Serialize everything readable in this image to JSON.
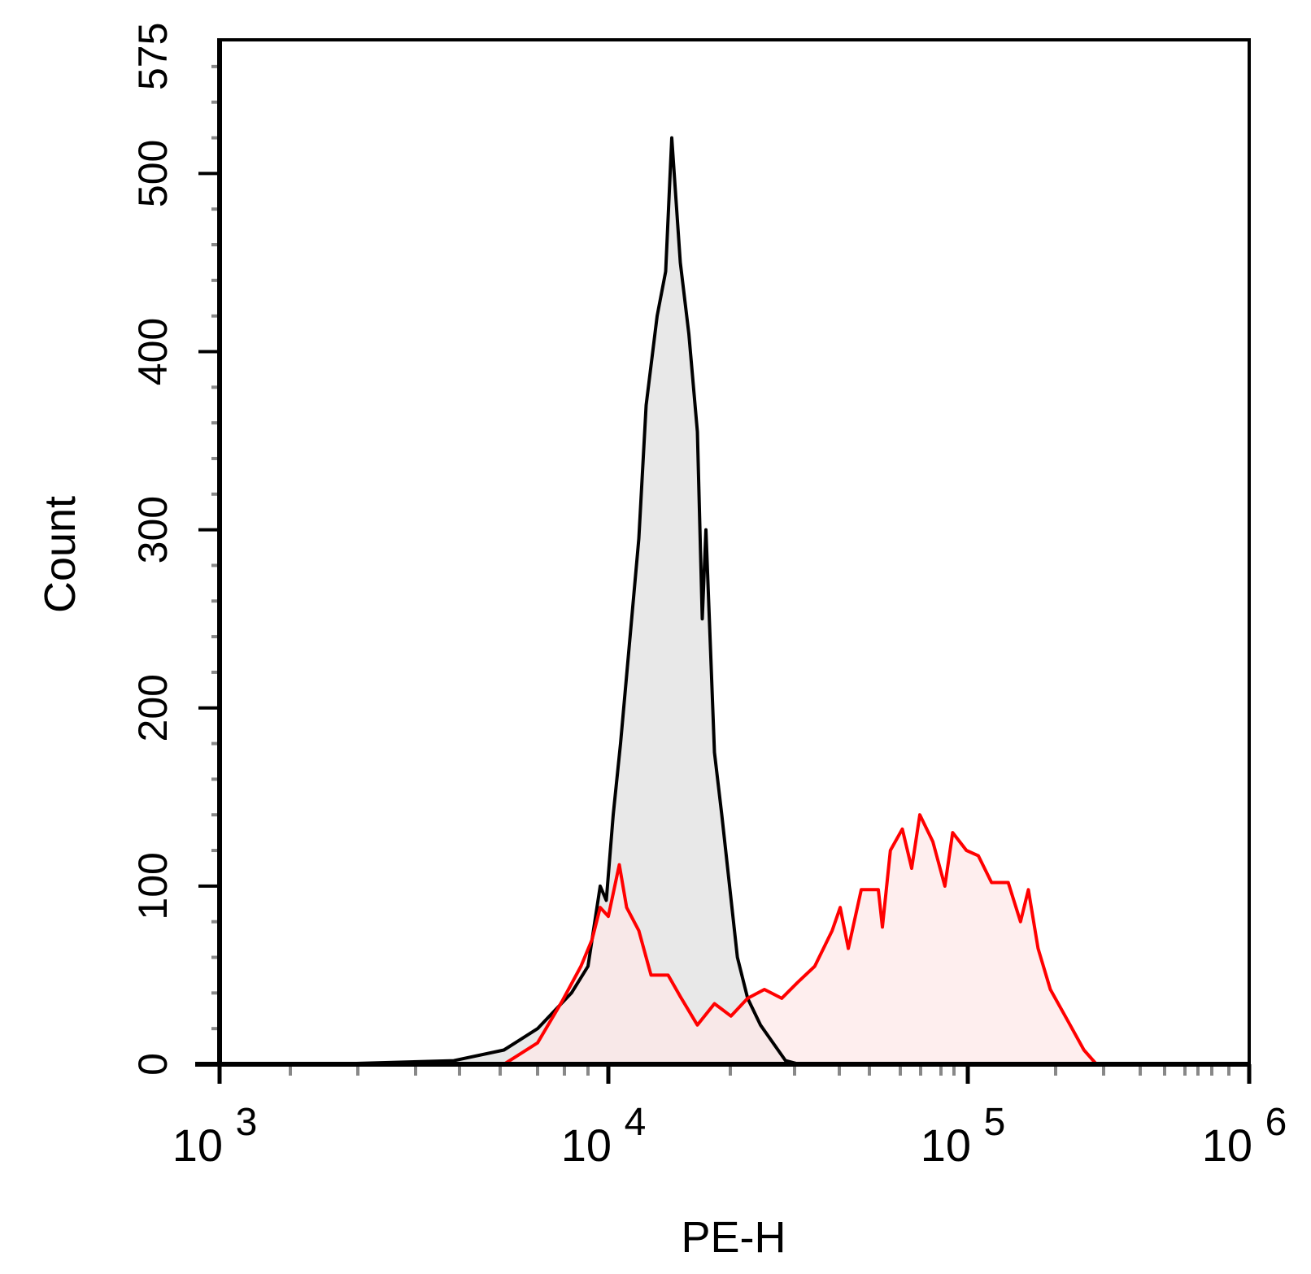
{
  "chart_data": {
    "type": "area",
    "title": "",
    "xlabel": "PE-H",
    "ylabel": "Count",
    "x_scale": "log",
    "xlim": [
      1000,
      1000000
    ],
    "ylim": [
      0,
      575
    ],
    "grid": false,
    "x_ticks": [
      {
        "base": "10",
        "exp": "3",
        "value": 1000
      },
      {
        "base": "10",
        "exp": "4",
        "value": 10000
      },
      {
        "base": "10",
        "exp": "5",
        "value": 100000
      },
      {
        "base": "10",
        "exp": "6",
        "value": 1000000
      }
    ],
    "y_ticks": [
      "0",
      "100",
      "200",
      "300",
      "400",
      "500",
      "575"
    ],
    "y_tick_values": [
      0,
      100,
      200,
      300,
      400,
      500,
      575
    ],
    "series": [
      {
        "color": "#000000",
        "fill": "#e8e8e8",
        "points": [
          [
            2550,
            0
          ],
          [
            4870,
            2
          ],
          [
            6100,
            8
          ],
          [
            7000,
            20
          ],
          [
            8300,
            40
          ],
          [
            9000,
            55
          ],
          [
            9600,
            100
          ],
          [
            9900,
            92
          ],
          [
            10400,
            140
          ],
          [
            11000,
            180
          ],
          [
            12500,
            295
          ],
          [
            13100,
            370
          ],
          [
            14000,
            420
          ],
          [
            14700,
            445
          ],
          [
            15200,
            520
          ],
          [
            15900,
            450
          ],
          [
            16600,
            410
          ],
          [
            17300,
            355
          ],
          [
            17700,
            250
          ],
          [
            18000,
            300
          ],
          [
            18700,
            175
          ],
          [
            19300,
            140
          ],
          [
            21100,
            60
          ],
          [
            22700,
            37
          ],
          [
            24700,
            22
          ],
          [
            28600,
            2
          ],
          [
            31100,
            0
          ]
        ]
      },
      {
        "color": "#ff0000",
        "fill": "#fde8e8",
        "points": [
          [
            6100,
            0
          ],
          [
            7000,
            12
          ],
          [
            7900,
            35
          ],
          [
            8700,
            55
          ],
          [
            9200,
            70
          ],
          [
            9600,
            88
          ],
          [
            10000,
            83
          ],
          [
            10900,
            112
          ],
          [
            11500,
            88
          ],
          [
            12500,
            75
          ],
          [
            13500,
            50
          ],
          [
            14900,
            50
          ],
          [
            15900,
            38
          ],
          [
            17300,
            22
          ],
          [
            18700,
            34
          ],
          [
            20100,
            27
          ],
          [
            22700,
            37
          ],
          [
            25300,
            42
          ],
          [
            28000,
            37
          ],
          [
            30700,
            46
          ],
          [
            34500,
            55
          ],
          [
            38400,
            75
          ],
          [
            40300,
            88
          ],
          [
            43000,
            65
          ],
          [
            47300,
            98
          ],
          [
            52900,
            98
          ],
          [
            54200,
            77
          ],
          [
            56800,
            120
          ],
          [
            61000,
            132
          ],
          [
            65600,
            110
          ],
          [
            69600,
            140
          ],
          [
            76000,
            125
          ],
          [
            83000,
            100
          ],
          [
            89000,
            130
          ],
          [
            99000,
            120
          ],
          [
            112000,
            117
          ],
          [
            127000,
            102
          ],
          [
            146000,
            102
          ],
          [
            160000,
            80
          ],
          [
            169000,
            98
          ],
          [
            180000,
            65
          ],
          [
            194000,
            42
          ],
          [
            224000,
            25
          ],
          [
            259000,
            8
          ],
          [
            285000,
            0
          ],
          [
            480000,
            0
          ]
        ]
      }
    ]
  }
}
